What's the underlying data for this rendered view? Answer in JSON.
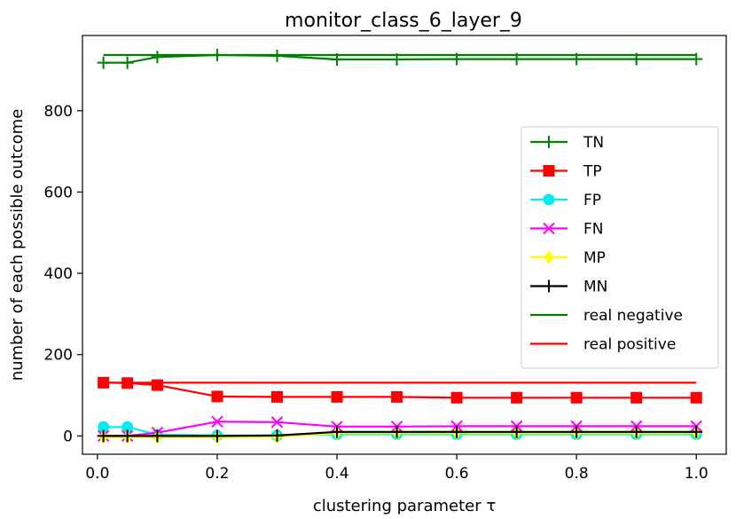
{
  "chart_data": {
    "type": "line",
    "title": "monitor_class_6_layer_9",
    "xlabel": "clustering parameter τ",
    "ylabel": "number of each possible outcome",
    "xlim": [
      -0.025,
      1.05
    ],
    "ylim": [
      -45,
      985
    ],
    "xticks": [
      "0.0",
      "0.2",
      "0.4",
      "0.6",
      "0.8",
      "1.0"
    ],
    "xtick_values": [
      0.0,
      0.2,
      0.4,
      0.6,
      0.8,
      1.0
    ],
    "yticks": [
      "0",
      "200",
      "400",
      "600",
      "800"
    ],
    "ytick_values": [
      0,
      200,
      400,
      600,
      800
    ],
    "grid": false,
    "legend_position": "center-right",
    "x": [
      0.01,
      0.05,
      0.1,
      0.2,
      0.3,
      0.4,
      0.5,
      0.6,
      0.7,
      0.8,
      0.9,
      1.0
    ],
    "series": [
      {
        "name": "TN",
        "color": "#008000",
        "marker": "plus",
        "values": [
          918,
          918,
          932,
          937,
          935,
          926,
          926,
          927,
          927,
          927,
          927,
          927
        ]
      },
      {
        "name": "TP",
        "color": "#ff0000",
        "marker": "square",
        "values": [
          131,
          130,
          125,
          97,
          96,
          96,
          96,
          94,
          94,
          94,
          94,
          94
        ]
      },
      {
        "name": "FP",
        "color": "#00eeee",
        "marker": "circle",
        "values": [
          22,
          22,
          3,
          1,
          1,
          4,
          4,
          4,
          4,
          4,
          4,
          4
        ]
      },
      {
        "name": "FN",
        "color": "#ff00ff",
        "marker": "x",
        "values": [
          0,
          0,
          8,
          35,
          34,
          23,
          23,
          24,
          24,
          24,
          24,
          24
        ]
      },
      {
        "name": "MP",
        "color": "#ffff00",
        "marker": "diamond",
        "values": [
          -3,
          -3,
          -3,
          -3,
          -2,
          7,
          7,
          7,
          7,
          7,
          7,
          7
        ]
      },
      {
        "name": "MN",
        "color": "#000000",
        "marker": "plus",
        "values": [
          0,
          0,
          0,
          0,
          1,
          10,
          10,
          10,
          10,
          10,
          10,
          10
        ]
      }
    ],
    "reference_lines": [
      {
        "name": "real negative",
        "color": "#008000",
        "y": 937
      },
      {
        "name": "real positive",
        "color": "#ff0000",
        "y": 131
      }
    ]
  }
}
